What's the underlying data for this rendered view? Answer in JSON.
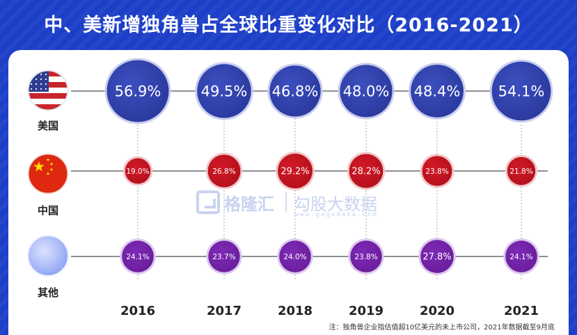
{
  "title": "中、美新增独角兽占全球比重变化对比（2016-2021）",
  "watermark": {
    "brand": "格隆汇",
    "sub": "勾股大数据",
    "url": "www.gogudata.com"
  },
  "footnote": "注：独角兽企业指估值超10亿美元的未上市公司，2021年数据截至9月底",
  "colors": {
    "background": "#1d3fc8",
    "us": "#2b3a9e",
    "china": "#b5101c",
    "other": "#6a1e9c",
    "connector": "#6a6a6a",
    "year_text": "#222222"
  },
  "chart_data": {
    "type": "bubble",
    "title": "中、美新增独角兽占全球比重变化对比（2016-2021）",
    "unit": "%",
    "categories": [
      "2016",
      "2017",
      "2018",
      "2019",
      "2020",
      "2021"
    ],
    "series": [
      {
        "key": "us",
        "name": "美国",
        "icon": "us-flag-icon",
        "values": [
          56.9,
          49.5,
          46.8,
          48.0,
          48.4,
          54.1
        ],
        "labels": [
          "56.9%",
          "49.5%",
          "46.8%",
          "48.0%",
          "48.4%",
          "54.1%"
        ]
      },
      {
        "key": "china",
        "name": "中国",
        "icon": "china-flag-icon",
        "values": [
          19.0,
          26.8,
          29.2,
          28.2,
          23.8,
          21.8
        ],
        "labels": [
          "19.0%",
          "26.8%",
          "29.2%",
          "28.2%",
          "23.8%",
          "21.8%"
        ]
      },
      {
        "key": "other",
        "name": "其他",
        "icon": "globe-icon",
        "values": [
          24.1,
          23.7,
          24.0,
          23.8,
          27.8,
          24.1
        ],
        "labels": [
          "24.1%",
          "23.7%",
          "24.0%",
          "23.8%",
          "27.8%",
          "24.1%"
        ]
      }
    ]
  }
}
